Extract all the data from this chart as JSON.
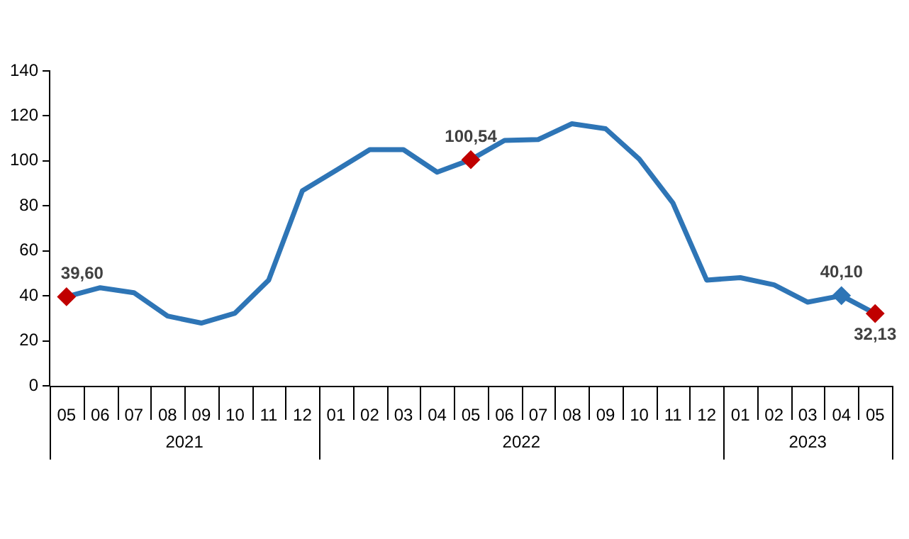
{
  "chart_data": {
    "type": "line",
    "categories": [
      "05",
      "06",
      "07",
      "08",
      "09",
      "10",
      "11",
      "12",
      "01",
      "02",
      "03",
      "04",
      "05",
      "06",
      "07",
      "08",
      "09",
      "10",
      "11",
      "12",
      "01",
      "02",
      "03",
      "04",
      "05"
    ],
    "annotations": [
      "2021",
      "2022",
      "2023"
    ],
    "series": [
      {
        "color": "#2e75b6",
        "values": [
          39.6,
          43.6,
          41.4,
          31.0,
          27.9,
          32.3,
          47.0,
          86.7,
          95.8,
          105,
          105,
          95,
          100.54,
          109.1,
          109.5,
          116.5,
          114.3,
          100.8,
          81.2,
          47.0,
          48.1,
          44.9,
          37.2,
          40.1,
          32.13
        ],
        "value_labels": [
          "39,60",
          null,
          null,
          null,
          null,
          null,
          null,
          null,
          null,
          null,
          null,
          null,
          "100,54",
          null,
          null,
          null,
          null,
          null,
          null,
          null,
          null,
          null,
          null,
          "40,10",
          "32,13"
        ],
        "colors": [
          "#c00000",
          null,
          null,
          null,
          null,
          null,
          null,
          null,
          null,
          null,
          null,
          null,
          "#c00000",
          null,
          null,
          null,
          null,
          null,
          null,
          null,
          null,
          null,
          null,
          "#2e75b6",
          "#c00000"
        ]
      }
    ],
    "ylim": [
      0,
      140
    ],
    "yticks": [
      0,
      20,
      40,
      60,
      80,
      100,
      120,
      140
    ],
    "grid": false,
    "legend": false
  }
}
